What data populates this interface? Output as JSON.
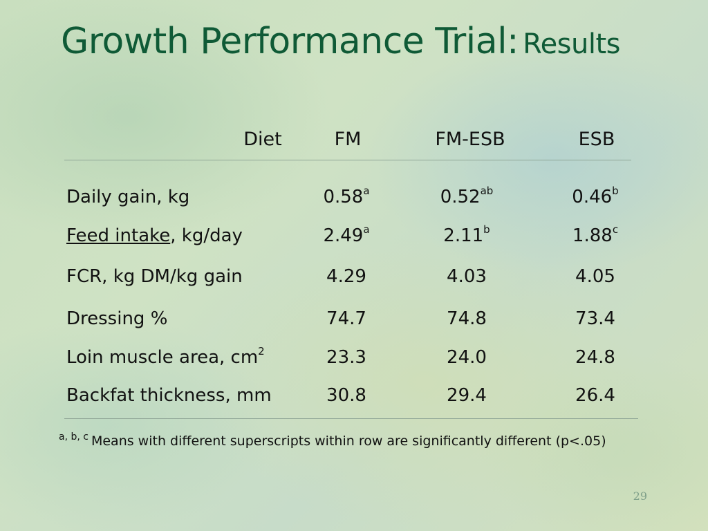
{
  "title": {
    "main": "Growth Performance Trial:",
    "sub": "Results"
  },
  "table": {
    "headers": [
      "Diet",
      "FM",
      "FM-ESB",
      "ESB"
    ],
    "rows": [
      {
        "label": "Daily gain, kg",
        "values": [
          {
            "v": "0.58",
            "sup": "a"
          },
          {
            "v": "0.52",
            "sup": "ab"
          },
          {
            "v": "0.46",
            "sup": "b"
          }
        ]
      },
      {
        "label_u": "Feed intake",
        "label_rest": ", kg/day",
        "values": [
          {
            "v": "2.49",
            "sup": "a"
          },
          {
            "v": "2.11",
            "sup": "b"
          },
          {
            "v": "1.88",
            "sup": "c"
          }
        ]
      },
      {
        "label": "FCR, kg DM/kg gain",
        "values": [
          {
            "v": "4.29"
          },
          {
            "v": "4.03"
          },
          {
            "v": "4.05"
          }
        ]
      },
      {
        "label": "Dressing %",
        "values": [
          {
            "v": "74.7"
          },
          {
            "v": "74.8"
          },
          {
            "v": "73.4"
          }
        ]
      },
      {
        "label": "Loin muscle area, cm",
        "label_sup": "2",
        "values": [
          {
            "v": "23.3"
          },
          {
            "v": "24.0"
          },
          {
            "v": "24.8"
          }
        ]
      },
      {
        "label": "Backfat thickness, mm",
        "values": [
          {
            "v": "30.8"
          },
          {
            "v": "29.4"
          },
          {
            "v": "26.4"
          }
        ]
      }
    ]
  },
  "footnote": {
    "marks": "a, b, c",
    "text": "Means with different superscripts within row are significantly different (p<.05)"
  },
  "page_number": "29",
  "colors": {
    "title": "#0f5a36",
    "text": "#111111"
  }
}
